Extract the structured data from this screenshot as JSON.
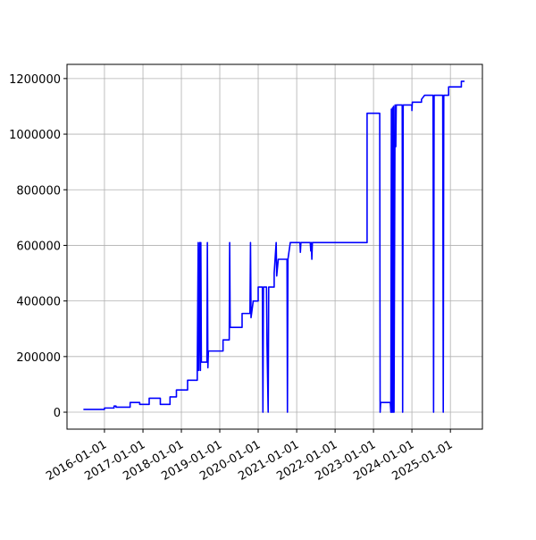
{
  "chart_data": {
    "type": "line",
    "grid": true,
    "xlim": [
      "2015-01-10",
      "2025-11-01"
    ],
    "ylim": [
      -61000,
      1251000
    ],
    "xticks": [
      "2016-01-01",
      "2017-01-01",
      "2018-01-01",
      "2019-01-01",
      "2020-01-01",
      "2021-01-01",
      "2022-01-01",
      "2023-01-01",
      "2024-01-01",
      "2025-01-01"
    ],
    "yticks": [
      0,
      200000,
      400000,
      600000,
      800000,
      1000000,
      1200000
    ],
    "series": [
      {
        "color": "#0000ff",
        "x": [
          "2015-06-15",
          "2016-01-01",
          "2016-01-01",
          "2016-04-01",
          "2016-04-01",
          "2016-04-20",
          "2016-04-20",
          "2016-09-01",
          "2016-09-01",
          "2016-12-01",
          "2016-12-01",
          "2017-03-01",
          "2017-03-01",
          "2017-06-15",
          "2017-06-15",
          "2017-09-15",
          "2017-09-15",
          "2017-11-15",
          "2017-11-15",
          "2018-03-01",
          "2018-03-01",
          "2018-06-01",
          "2018-06-01",
          "2018-06-10",
          "2018-06-15",
          "2018-06-25",
          "2018-07-01",
          "2018-07-05",
          "2018-07-10",
          "2018-09-01",
          "2018-09-05",
          "2018-09-10",
          "2018-09-15",
          "2019-02-01",
          "2019-02-01",
          "2019-04-01",
          "2019-04-05",
          "2019-04-10",
          "2019-08-01",
          "2019-08-01",
          "2019-10-15",
          "2019-10-20",
          "2019-10-25",
          "2019-11-15",
          "2020-01-01",
          "2020-01-01",
          "2020-02-10",
          "2020-02-15",
          "2020-02-20",
          "2020-03-20",
          "2020-03-25",
          "2020-04-05",
          "2020-04-10",
          "2020-06-01",
          "2020-06-01",
          "2020-06-20",
          "2020-06-25",
          "2020-07-10",
          "2020-10-01",
          "2020-10-05",
          "2020-10-10",
          "2020-11-01",
          "2021-02-01",
          "2021-02-05",
          "2021-02-10",
          "2021-05-10",
          "2021-05-15",
          "2021-05-20",
          "2021-05-25",
          "2021-05-30",
          "2022-11-01",
          "2022-11-01",
          "2023-03-01",
          "2023-03-05",
          "2023-03-10",
          "2023-06-10",
          "2023-06-15",
          "2023-06-20",
          "2023-06-25",
          "2023-07-01",
          "2023-07-05",
          "2023-07-10",
          "2023-07-15",
          "2023-07-25",
          "2023-08-01",
          "2023-08-05",
          "2023-10-01",
          "2023-10-05",
          "2023-10-10",
          "2024-01-01",
          "2024-01-01",
          "2024-01-05",
          "2024-04-01",
          "2024-04-01",
          "2024-05-01",
          "2024-07-20",
          "2024-07-25",
          "2024-07-30",
          "2024-10-20",
          "2024-10-25",
          "2024-10-30",
          "2024-12-15",
          "2024-12-15",
          "2025-04-15",
          "2025-04-15",
          "2025-05-15"
        ],
        "values": [
          10000,
          10000,
          15000,
          15000,
          22000,
          22000,
          18000,
          18000,
          35000,
          35000,
          28000,
          28000,
          50000,
          50000,
          28000,
          28000,
          55000,
          55000,
          80000,
          80000,
          115000,
          115000,
          150000,
          610000,
          150000,
          610000,
          150000,
          610000,
          180000,
          180000,
          610000,
          160000,
          220000,
          220000,
          260000,
          260000,
          610000,
          305000,
          305000,
          355000,
          355000,
          610000,
          340000,
          400000,
          400000,
          450000,
          450000,
          0,
          450000,
          450000,
          245000,
          0,
          450000,
          450000,
          500000,
          610000,
          490000,
          550000,
          550000,
          0,
          550000,
          610000,
          610000,
          575000,
          610000,
          610000,
          580000,
          610000,
          550000,
          610000,
          610000,
          1075000,
          1075000,
          0,
          35000,
          35000,
          0,
          1090000,
          0,
          1095000,
          0,
          1100000,
          0,
          1105000,
          955000,
          1105000,
          1105000,
          0,
          1105000,
          1105000,
          1085000,
          1115000,
          1115000,
          1125000,
          1140000,
          1140000,
          0,
          1140000,
          1140000,
          0,
          1140000,
          1140000,
          1170000,
          1170000,
          1190000,
          1190000
        ]
      }
    ]
  }
}
